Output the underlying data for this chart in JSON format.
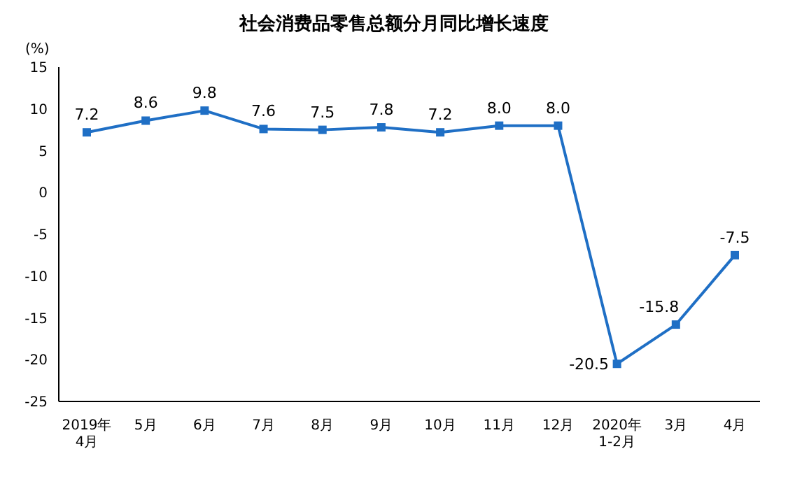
{
  "chart_data": {
    "type": "line",
    "title": "社会消费品零售总额分月同比增长速度",
    "ylabel": "(%)",
    "categories": [
      "2019年\n4月",
      "5月",
      "6月",
      "7月",
      "8月",
      "9月",
      "10月",
      "11月",
      "12月",
      "2020年\n1-2月",
      "3月",
      "4月"
    ],
    "series": [
      {
        "color": "#1f6fc5",
        "values": [
          7.2,
          8.6,
          9.8,
          7.6,
          7.5,
          7.8,
          7.2,
          8.0,
          8.0,
          -20.5,
          -15.8,
          -7.5
        ],
        "value_labels": [
          "7.2",
          "8.6",
          "9.8",
          "7.6",
          "7.5",
          "7.8",
          "7.2",
          "8.0",
          "8.0",
          "-20.5",
          "-15.8",
          "-7.5"
        ]
      }
    ],
    "ylim": [
      -25,
      15
    ],
    "yticks": [
      -25,
      -20,
      -15,
      -10,
      -5,
      0,
      5,
      10,
      15
    ],
    "marker": "square",
    "line_style": "solid",
    "grid": false
  }
}
